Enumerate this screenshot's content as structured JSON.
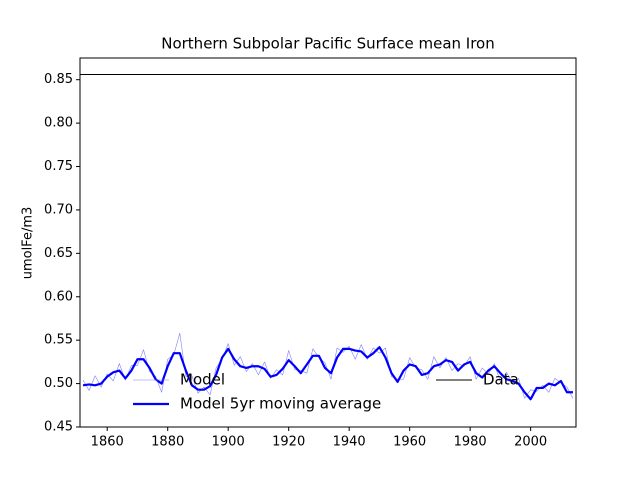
{
  "chart_data": {
    "type": "line",
    "title": "Northern Subpolar Pacific Surface mean Iron",
    "ylabel": "umolFe/m3",
    "xlim": [
      1851,
      2015
    ],
    "ylim": [
      0.45,
      0.875
    ],
    "xticks": [
      1860,
      1880,
      1900,
      1920,
      1940,
      1960,
      1980,
      2000
    ],
    "yticks": [
      0.45,
      {
        "value": 0.5,
        "label": "0.50"
      },
      0.55,
      {
        "value": 0.6,
        "label": "0.60"
      },
      0.65,
      {
        "value": 0.7,
        "label": "0.70"
      },
      0.75,
      {
        "value": 0.8,
        "label": "0.80"
      },
      0.85
    ],
    "series": [
      {
        "name": "Model",
        "color": "#7f7fff",
        "width": 0.6,
        "x": [
          1852,
          1854,
          1856,
          1858,
          1860,
          1862,
          1864,
          1866,
          1868,
          1870,
          1872,
          1874,
          1876,
          1878,
          1880,
          1882,
          1884,
          1886,
          1888,
          1890,
          1892,
          1894,
          1896,
          1898,
          1900,
          1902,
          1904,
          1906,
          1908,
          1910,
          1912,
          1914,
          1916,
          1918,
          1920,
          1922,
          1924,
          1926,
          1928,
          1930,
          1932,
          1934,
          1936,
          1938,
          1940,
          1942,
          1944,
          1946,
          1948,
          1950,
          1952,
          1954,
          1956,
          1958,
          1960,
          1962,
          1964,
          1966,
          1968,
          1970,
          1972,
          1974,
          1976,
          1978,
          1980,
          1982,
          1984,
          1986,
          1988,
          1990,
          1992,
          1994,
          1996,
          1998,
          2000,
          2002,
          2004,
          2006,
          2008,
          2010,
          2012,
          2014
        ],
        "values": [
          0.504,
          0.492,
          0.509,
          0.496,
          0.511,
          0.503,
          0.523,
          0.504,
          0.521,
          0.521,
          0.539,
          0.514,
          0.508,
          0.49,
          0.528,
          0.533,
          0.558,
          0.508,
          0.509,
          0.489,
          0.496,
          0.487,
          0.518,
          0.528,
          0.546,
          0.521,
          0.531,
          0.514,
          0.523,
          0.51,
          0.525,
          0.506,
          0.516,
          0.51,
          0.538,
          0.516,
          0.515,
          0.512,
          0.54,
          0.53,
          0.524,
          0.505,
          0.541,
          0.536,
          0.543,
          0.528,
          0.545,
          0.528,
          0.541,
          0.535,
          0.541,
          0.508,
          0.505,
          0.505,
          0.53,
          0.518,
          0.516,
          0.505,
          0.531,
          0.518,
          0.53,
          0.515,
          0.523,
          0.52,
          0.531,
          0.505,
          0.518,
          0.511,
          0.523,
          0.502,
          0.513,
          0.501,
          0.506,
          0.483,
          0.493,
          0.491,
          0.498,
          0.49,
          0.506,
          0.501,
          0.496,
          0.483
        ]
      },
      {
        "name": "Model 5yr moving average",
        "color": "#0000ff",
        "width": 2.2,
        "x": [
          1852,
          1854,
          1856,
          1858,
          1860,
          1862,
          1864,
          1866,
          1868,
          1870,
          1872,
          1874,
          1876,
          1878,
          1880,
          1882,
          1884,
          1886,
          1888,
          1890,
          1892,
          1894,
          1896,
          1898,
          1900,
          1902,
          1904,
          1906,
          1908,
          1910,
          1912,
          1914,
          1916,
          1918,
          1920,
          1922,
          1924,
          1926,
          1928,
          1930,
          1932,
          1934,
          1936,
          1938,
          1940,
          1942,
          1944,
          1946,
          1948,
          1950,
          1952,
          1954,
          1956,
          1958,
          1960,
          1962,
          1964,
          1966,
          1968,
          1970,
          1972,
          1974,
          1976,
          1978,
          1980,
          1982,
          1984,
          1986,
          1988,
          1990,
          1992,
          1994,
          1996,
          1998,
          2000,
          2002,
          2004,
          2006,
          2008,
          2010,
          2012,
          2014
        ],
        "values": [
          0.498,
          0.499,
          0.498,
          0.5,
          0.508,
          0.513,
          0.515,
          0.506,
          0.515,
          0.528,
          0.528,
          0.518,
          0.505,
          0.5,
          0.52,
          0.535,
          0.535,
          0.515,
          0.498,
          0.493,
          0.493,
          0.497,
          0.51,
          0.53,
          0.54,
          0.528,
          0.52,
          0.518,
          0.52,
          0.52,
          0.517,
          0.508,
          0.51,
          0.517,
          0.527,
          0.52,
          0.512,
          0.522,
          0.532,
          0.532,
          0.518,
          0.512,
          0.53,
          0.54,
          0.54,
          0.538,
          0.537,
          0.53,
          0.535,
          0.542,
          0.53,
          0.512,
          0.502,
          0.515,
          0.522,
          0.52,
          0.51,
          0.512,
          0.52,
          0.522,
          0.527,
          0.525,
          0.515,
          0.522,
          0.525,
          0.512,
          0.507,
          0.515,
          0.52,
          0.512,
          0.505,
          0.503,
          0.5,
          0.49,
          0.482,
          0.495,
          0.495,
          0.5,
          0.498,
          0.503,
          0.49,
          0.49
        ]
      },
      {
        "name": "Data",
        "color": "#000000",
        "width": 1,
        "x": [
          1851,
          2015
        ],
        "values": [
          0.856,
          0.856
        ]
      }
    ]
  }
}
